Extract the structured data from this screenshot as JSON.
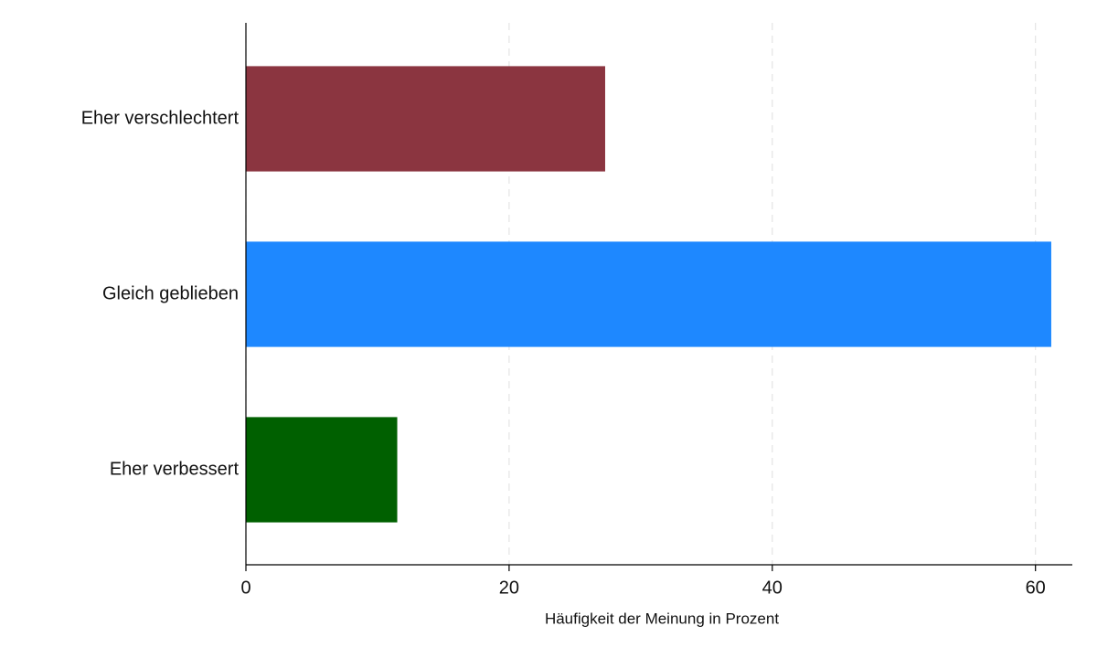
{
  "chart_data": {
    "type": "barh",
    "categories": [
      "Eher verschlechtert",
      "Gleich geblieben",
      "Eher verbessert"
    ],
    "values": [
      27.3,
      61.2,
      11.5
    ],
    "colors": [
      "#8b3540",
      "#1e88ff",
      "#006000"
    ],
    "x_label": "Häufigkeit der Meinung in Prozent",
    "xlim": [
      0,
      62.8
    ],
    "xticks": [
      0,
      20,
      40,
      60
    ],
    "grid": true
  }
}
